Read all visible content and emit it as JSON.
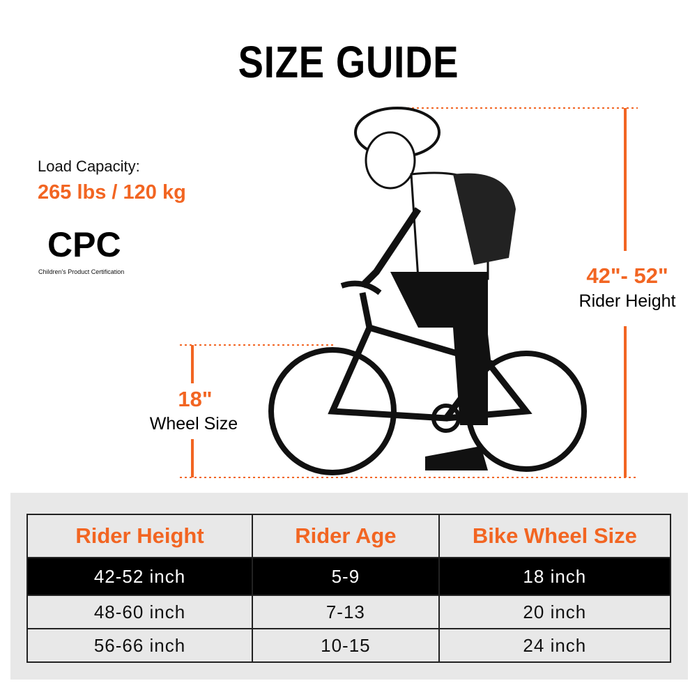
{
  "title": "SIZE GUIDE",
  "load_capacity": {
    "label": "Load Capacity:",
    "value": "265 lbs / 120 kg"
  },
  "certification": {
    "logo": "CPC",
    "caption": "Children's Product Certification"
  },
  "dimensions": {
    "rider_height": {
      "value": "42\"- 52\"",
      "label": "Rider Height"
    },
    "wheel_size": {
      "value": "18\"",
      "label": "Wheel Size"
    }
  },
  "colors": {
    "accent": "#f26522",
    "text": "#000000",
    "panel": "#e8e8e8"
  },
  "table": {
    "headers": [
      "Rider Height",
      "Rider Age",
      "Bike Wheel Size"
    ],
    "rows": [
      [
        "42-52 inch",
        "5-9",
        "18 inch"
      ],
      [
        "48-60 inch",
        "7-13",
        "20 inch"
      ],
      [
        "56-66 inch",
        "10-15",
        "24 inch"
      ]
    ],
    "highlighted_row": 0
  },
  "illustration": "child-riding-bicycle"
}
